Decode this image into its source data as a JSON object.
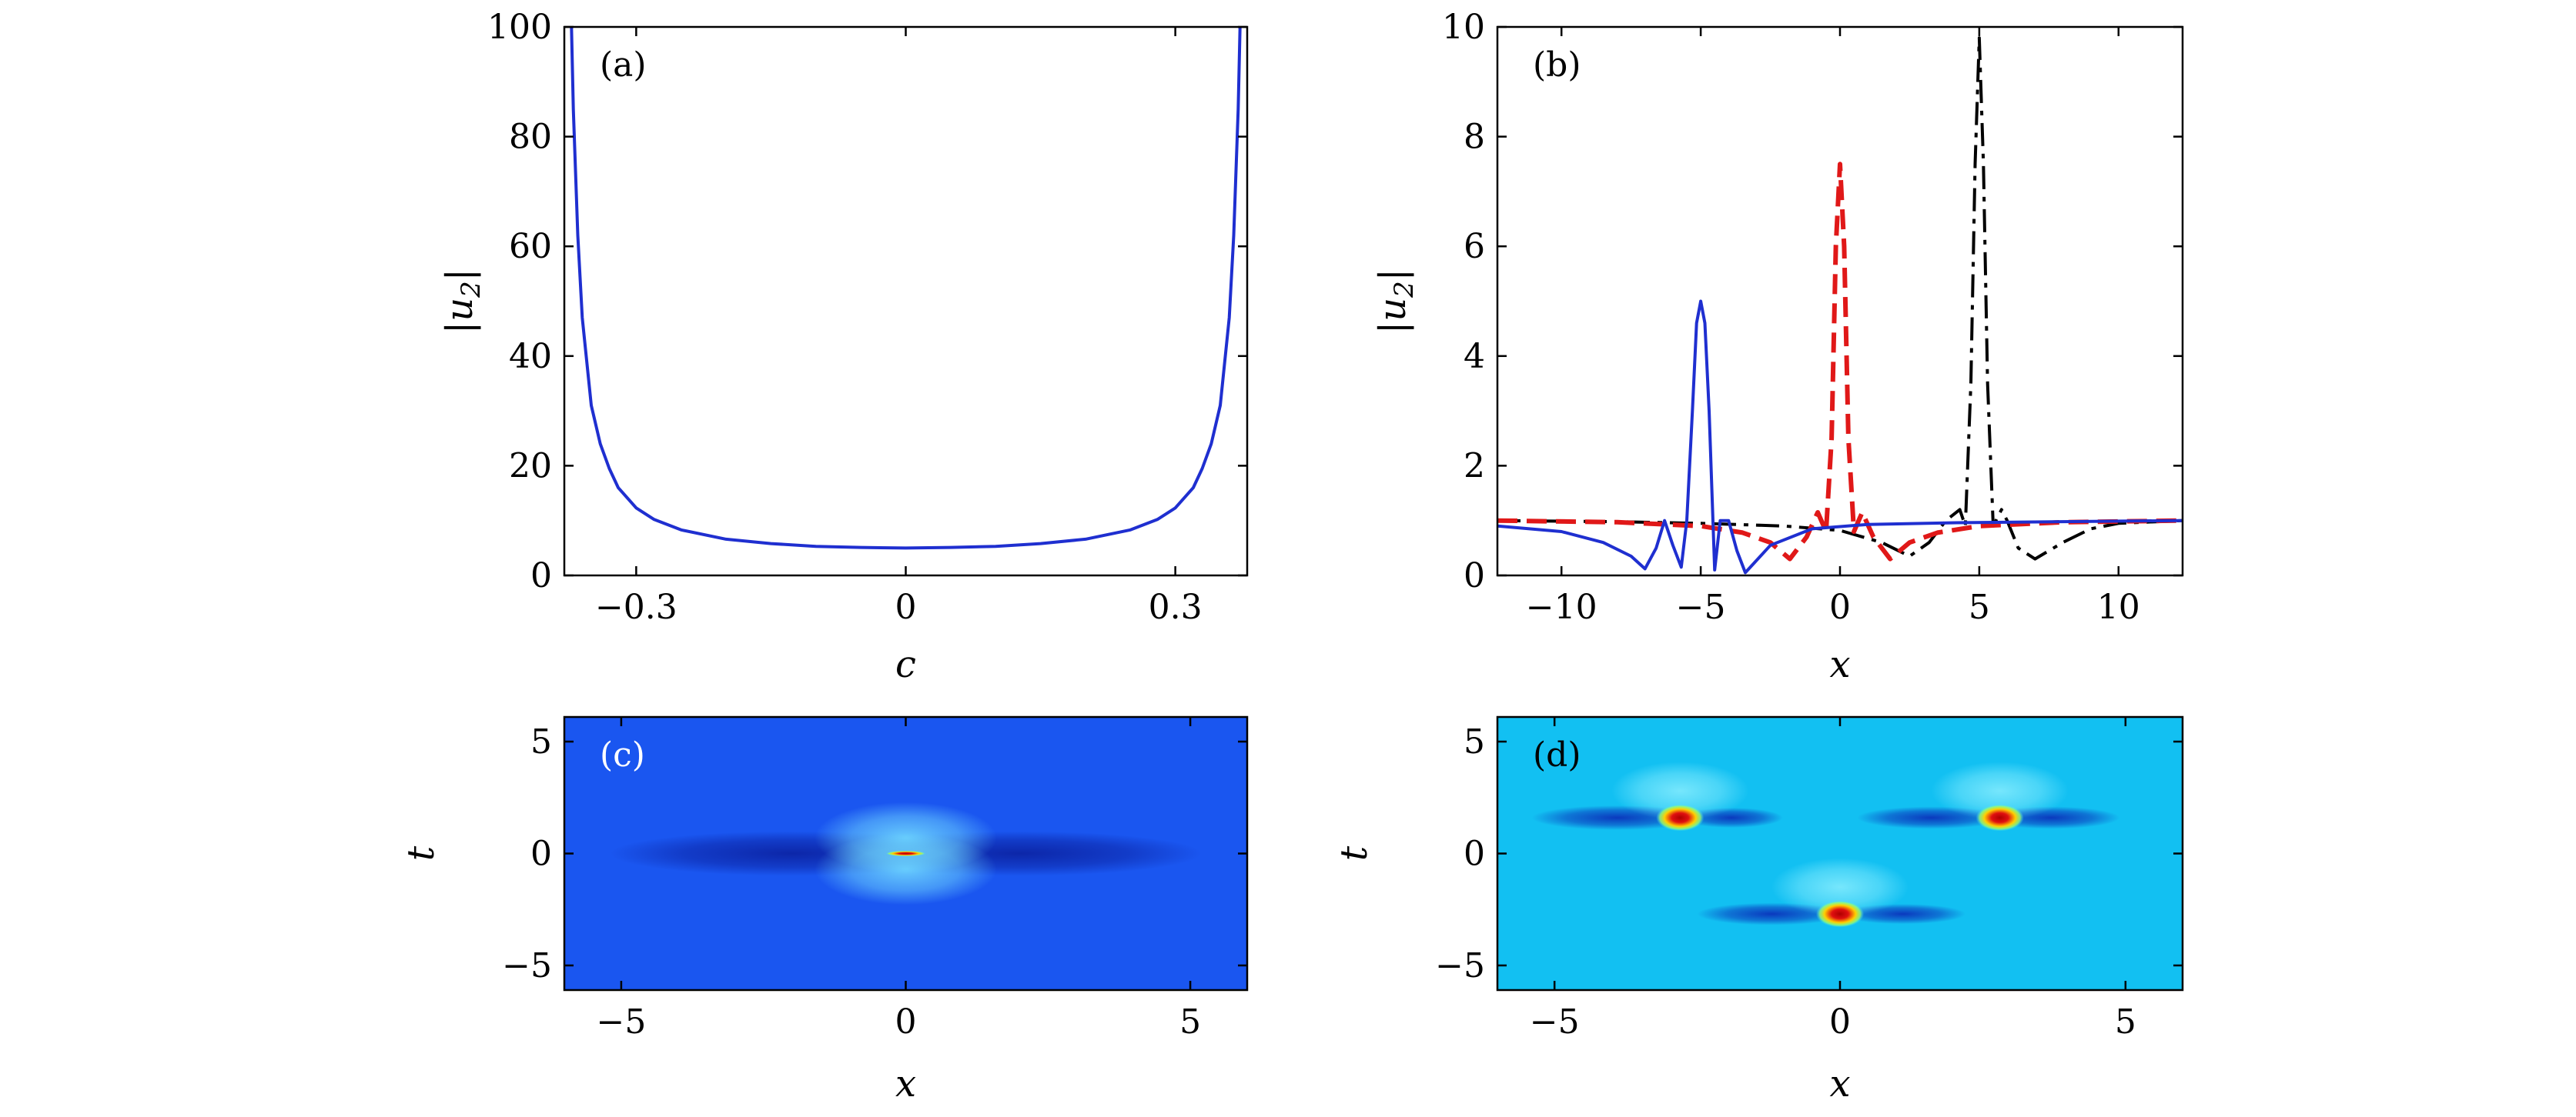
{
  "chart_data": [
    {
      "id": "a",
      "type": "line",
      "panel_label": "(a)",
      "xlabel": "c",
      "ylabel": "|u2|",
      "ylabel_base": "|u",
      "ylabel_sub": "2",
      "ylabel_tail": "|",
      "xlim": [
        -0.38,
        0.38
      ],
      "ylim": [
        0,
        100
      ],
      "xticks": [
        -0.3,
        0,
        0.3
      ],
      "xtick_labels": [
        "−0.3",
        "0",
        "0.3"
      ],
      "yticks": [
        0,
        20,
        40,
        60,
        80,
        100
      ],
      "ytick_labels": [
        "0",
        "20",
        "40",
        "60",
        "80",
        "100"
      ],
      "series": [
        {
          "name": "|u2|(c)",
          "color": "#1f2fd0",
          "style": "solid",
          "x": [
            -0.372,
            -0.37,
            -0.365,
            -0.36,
            -0.35,
            -0.34,
            -0.33,
            -0.32,
            -0.3,
            -0.28,
            -0.25,
            -0.2,
            -0.15,
            -0.1,
            -0.05,
            0,
            0.05,
            0.1,
            0.15,
            0.2,
            0.25,
            0.28,
            0.3,
            0.32,
            0.33,
            0.34,
            0.35,
            0.36,
            0.365,
            0.37,
            0.372
          ],
          "values": [
            100,
            85,
            62,
            47,
            31,
            24,
            19.5,
            16,
            12.3,
            10.2,
            8.3,
            6.6,
            5.8,
            5.3,
            5.1,
            5.0,
            5.1,
            5.3,
            5.8,
            6.6,
            8.3,
            10.2,
            12.3,
            16,
            19.5,
            24,
            31,
            47,
            62,
            85,
            100
          ]
        }
      ]
    },
    {
      "id": "b",
      "type": "line",
      "panel_label": "(b)",
      "xlabel": "x",
      "ylabel": "|u2|",
      "ylabel_base": "|u",
      "ylabel_sub": "2",
      "ylabel_tail": "|",
      "xlim": [
        -12.3,
        12.3
      ],
      "ylim": [
        0,
        10
      ],
      "xticks": [
        -10,
        -5,
        0,
        5,
        10
      ],
      "xtick_labels": [
        "−10",
        "−5",
        "0",
        "5",
        "10"
      ],
      "yticks": [
        0,
        2,
        4,
        6,
        8,
        10
      ],
      "ytick_labels": [
        "0",
        "2",
        "4",
        "6",
        "8",
        "10"
      ],
      "series": [
        {
          "name": "black dash-dot",
          "color": "#000000",
          "style": "dashdot",
          "x": [
            -12.3,
            -8,
            -5,
            -2,
            0,
            1.5,
            2.5,
            3.2,
            3.8,
            4.3,
            4.5,
            4.7,
            4.85,
            5.0,
            5.15,
            5.3,
            5.5,
            5.8,
            6.0,
            6.4,
            7,
            8,
            9,
            10,
            12.3
          ],
          "values": [
            1.0,
            0.98,
            0.95,
            0.9,
            0.82,
            0.6,
            0.35,
            0.6,
            1.0,
            1.2,
            0.9,
            3.5,
            7.5,
            9.8,
            7.5,
            3.5,
            0.9,
            1.2,
            1.0,
            0.5,
            0.3,
            0.6,
            0.85,
            0.95,
            1.0
          ]
        },
        {
          "name": "red dashed",
          "color": "#e01818",
          "style": "dashed",
          "x": [
            -12.3,
            -8,
            -5,
            -3.5,
            -2.5,
            -1.8,
            -1.2,
            -0.8,
            -0.5,
            -0.3,
            -0.15,
            0,
            0.15,
            0.3,
            0.5,
            0.8,
            1.2,
            1.8,
            2.5,
            3.5,
            5,
            8,
            12.3
          ],
          "values": [
            1.0,
            0.97,
            0.9,
            0.78,
            0.6,
            0.3,
            0.7,
            1.15,
            0.8,
            2.5,
            6.0,
            7.5,
            6.0,
            2.5,
            0.8,
            1.15,
            0.7,
            0.3,
            0.6,
            0.78,
            0.9,
            0.97,
            1.0
          ]
        },
        {
          "name": "blue solid",
          "color": "#1f2fd0",
          "style": "solid",
          "x": [
            -12.3,
            -10,
            -8.5,
            -7.5,
            -7.0,
            -6.6,
            -6.3,
            -6.0,
            -5.7,
            -5.5,
            -5.3,
            -5.15,
            -5.0,
            -4.85,
            -4.7,
            -4.5,
            -4.3,
            -4.0,
            -3.7,
            -3.4,
            -2.5,
            -1.0,
            1,
            4,
            8,
            12.3
          ],
          "values": [
            0.9,
            0.8,
            0.6,
            0.35,
            0.12,
            0.5,
            1.0,
            0.55,
            0.15,
            1.0,
            3.0,
            4.6,
            5.0,
            4.6,
            3.0,
            0.1,
            1.0,
            1.0,
            0.45,
            0.05,
            0.55,
            0.85,
            0.93,
            0.96,
            0.98,
            1.0
          ]
        }
      ]
    },
    {
      "id": "c",
      "type": "heatmap",
      "panel_label": "(c)",
      "xlabel": "x",
      "ylabel": "t",
      "xlim": [
        -6,
        6
      ],
      "ylim": [
        -6.1,
        6.1
      ],
      "xticks": [
        -5,
        0,
        5
      ],
      "xtick_labels": [
        "−5",
        "0",
        "5"
      ],
      "yticks": [
        -5,
        0,
        5
      ],
      "ytick_labels": [
        "−5",
        "0",
        "5"
      ],
      "background": "#1a56f0",
      "features": [
        {
          "kind": "lobe",
          "x": -2.0,
          "t": 0,
          "rx": 3.2,
          "rt": 1.0,
          "color": "#0a1e9c",
          "opacity": 0.85
        },
        {
          "kind": "lobe",
          "x": 2.0,
          "t": 0,
          "rx": 3.2,
          "rt": 1.0,
          "color": "#0a1e9c",
          "opacity": 0.85
        },
        {
          "kind": "lobe",
          "x": 0,
          "t": 0.7,
          "rx": 1.6,
          "rt": 1.6,
          "color": "#6fd8ff",
          "opacity": 0.9
        },
        {
          "kind": "lobe",
          "x": 0,
          "t": -0.7,
          "rx": 1.6,
          "rt": 1.6,
          "color": "#6fd8ff",
          "opacity": 0.9
        },
        {
          "kind": "peak",
          "x": 0,
          "t": 0,
          "rx": 0.35,
          "rt": 0.12,
          "color": "#e01010",
          "opacity": 1.0
        }
      ]
    },
    {
      "id": "d",
      "type": "heatmap",
      "panel_label": "(d)",
      "xlabel": "x",
      "ylabel": "t",
      "xlim": [
        -6,
        6
      ],
      "ylim": [
        -6.1,
        6.1
      ],
      "xticks": [
        -5,
        0,
        5
      ],
      "xtick_labels": [
        "−5",
        "0",
        "5"
      ],
      "yticks": [
        -5,
        0,
        5
      ],
      "ytick_labels": [
        "−5",
        "0",
        "5"
      ],
      "background": "#12c0f2",
      "features": [
        {
          "kind": "lobe",
          "x": -3.9,
          "t": 1.6,
          "rx": 1.5,
          "rt": 0.55,
          "color": "#0a2ab8",
          "opacity": 0.9
        },
        {
          "kind": "lobe",
          "x": -1.9,
          "t": 1.6,
          "rx": 0.9,
          "rt": 0.45,
          "color": "#0a2ab8",
          "opacity": 0.9
        },
        {
          "kind": "lobe",
          "x": 1.6,
          "t": 1.6,
          "rx": 1.3,
          "rt": 0.5,
          "color": "#0a2ab8",
          "opacity": 0.9
        },
        {
          "kind": "lobe",
          "x": 3.7,
          "t": 1.6,
          "rx": 1.2,
          "rt": 0.5,
          "color": "#0a2ab8",
          "opacity": 0.9
        },
        {
          "kind": "lobe",
          "x": -1.2,
          "t": -2.7,
          "rx": 1.3,
          "rt": 0.5,
          "color": "#0a2ab8",
          "opacity": 0.9
        },
        {
          "kind": "lobe",
          "x": 1.1,
          "t": -2.7,
          "rx": 1.1,
          "rt": 0.45,
          "color": "#0a2ab8",
          "opacity": 0.9
        },
        {
          "kind": "lobe",
          "x": -2.8,
          "t": 2.8,
          "rx": 1.2,
          "rt": 1.3,
          "color": "#8ff0ff",
          "opacity": 0.8
        },
        {
          "kind": "lobe",
          "x": 2.8,
          "t": 2.8,
          "rx": 1.2,
          "rt": 1.3,
          "color": "#8ff0ff",
          "opacity": 0.8
        },
        {
          "kind": "lobe",
          "x": 0,
          "t": -1.5,
          "rx": 1.2,
          "rt": 1.3,
          "color": "#8ff0ff",
          "opacity": 0.8
        },
        {
          "kind": "peak",
          "x": -2.8,
          "t": 1.6,
          "rx": 0.42,
          "rt": 0.6,
          "color": "#e01010",
          "opacity": 1.0
        },
        {
          "kind": "peak",
          "x": 2.8,
          "t": 1.6,
          "rx": 0.42,
          "rt": 0.6,
          "color": "#e01010",
          "opacity": 1.0
        },
        {
          "kind": "peak",
          "x": 0,
          "t": -2.7,
          "rx": 0.42,
          "rt": 0.6,
          "color": "#e01010",
          "opacity": 1.0
        }
      ]
    }
  ]
}
